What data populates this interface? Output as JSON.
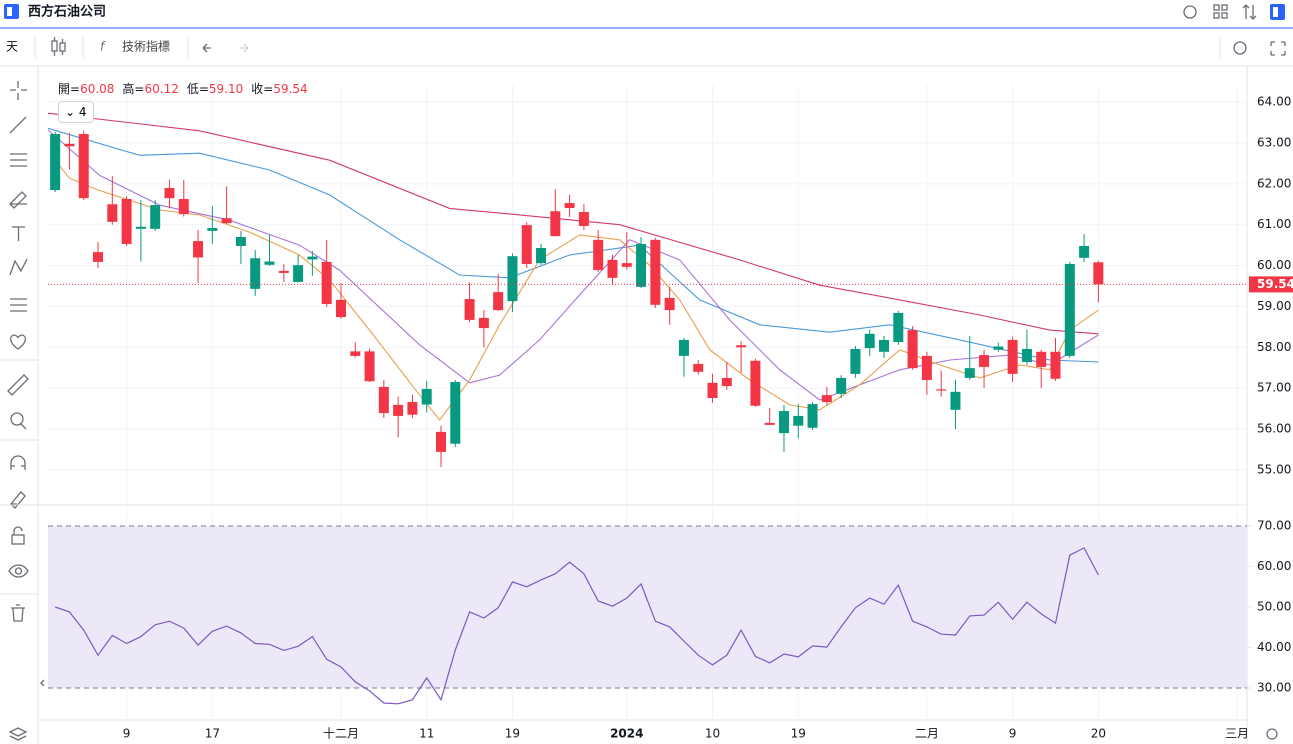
{
  "header": {
    "title": "西方石油公司"
  },
  "toolbar": {
    "interval": "天",
    "indicators": "技術指標"
  },
  "ohlc_legend": [
    {
      "label": "開=",
      "value": "60.08"
    },
    {
      "label": "高=",
      "value": "60.12"
    },
    {
      "label": "低=",
      "value": "59.10"
    },
    {
      "label": "收=",
      "value": "59.54"
    }
  ],
  "indicator_count": "4",
  "chart_data": [
    {
      "type": "candlestick",
      "up_color": "#089981",
      "down_color": "#f23645",
      "xlim": [
        -0.5,
        83.4
      ],
      "ylim": [
        54.14,
        64.42
      ],
      "grid": true,
      "yticks": [
        {
          "value": 55,
          "label": "55.00"
        },
        {
          "value": 56,
          "label": "56.00"
        },
        {
          "value": 57,
          "label": "57.00"
        },
        {
          "value": 58,
          "label": "58.00"
        },
        {
          "value": 59,
          "label": "59.00"
        },
        {
          "value": 60,
          "label": "60.00"
        },
        {
          "value": 61,
          "label": "61.00"
        },
        {
          "value": 62,
          "label": "62.00"
        },
        {
          "value": 63,
          "label": "63.00"
        },
        {
          "value": 64,
          "label": "64.00"
        }
      ],
      "xticks": [
        {
          "value": 5,
          "label": "9"
        },
        {
          "value": 11,
          "label": "17"
        },
        {
          "value": 20,
          "label": "十二月"
        },
        {
          "value": 26,
          "label": "11"
        },
        {
          "value": 32,
          "label": "19"
        },
        {
          "value": 40,
          "label": "2024"
        },
        {
          "value": 46,
          "label": "10"
        },
        {
          "value": 52,
          "label": "19"
        },
        {
          "value": 61,
          "label": "二月"
        },
        {
          "value": 67,
          "label": "9"
        },
        {
          "value": 73,
          "label": "20"
        },
        {
          "value": 82.7,
          "label": "三月"
        }
      ],
      "last_price": {
        "value": 59.54,
        "label": "59.54",
        "color": "#f23645"
      },
      "x": [
        0,
        1,
        2,
        3,
        4,
        5,
        6,
        7,
        8,
        9,
        10,
        11,
        12,
        13,
        14,
        15,
        16,
        17,
        18,
        19,
        20,
        21,
        22,
        23,
        24,
        25,
        26,
        27,
        28,
        29,
        30,
        31,
        32,
        33,
        34,
        35,
        36,
        37,
        38,
        39,
        40,
        41,
        42,
        43,
        44,
        45,
        46,
        47,
        48,
        49,
        50,
        51,
        52,
        53,
        54,
        55,
        56,
        57,
        58,
        59,
        60,
        61,
        62,
        63,
        64,
        65,
        66,
        67,
        68,
        69,
        70,
        71,
        72,
        73
      ],
      "open": [
        61.85,
        62.98,
        63.22,
        60.33,
        61.5,
        61.63,
        60.9,
        60.9,
        61.9,
        61.63,
        60.6,
        60.85,
        61.16,
        60.48,
        59.43,
        60.02,
        59.87,
        59.6,
        60.15,
        60.09,
        59.16,
        57.9,
        57.9,
        57.03,
        56.59,
        56.66,
        56.6,
        55.93,
        55.64,
        59.18,
        58.72,
        59.35,
        59.13,
        60.99,
        60.06,
        61.33,
        61.53,
        61.31,
        60.63,
        60.14,
        60.06,
        59.48,
        60.63,
        59.21,
        57.79,
        57.59,
        57.13,
        57.25,
        58.05,
        57.67,
        56.15,
        55.9,
        56.08,
        56.03,
        56.83,
        56.86,
        57.35,
        57.98,
        57.89,
        58.13,
        58.42,
        57.79,
        56.97,
        56.47,
        57.25,
        57.81,
        57.94,
        58.18,
        57.64,
        57.89,
        57.89,
        57.79,
        60.19,
        60.08
      ],
      "high": [
        63.27,
        63.25,
        63.3,
        60.58,
        62.19,
        61.7,
        61.6,
        61.6,
        62.1,
        62.1,
        60.87,
        61.46,
        61.94,
        60.85,
        60.38,
        60.75,
        60.04,
        60.26,
        60.36,
        60.63,
        59.57,
        58.12,
        57.97,
        57.2,
        56.79,
        56.84,
        57.18,
        56.08,
        57.2,
        59.59,
        58.91,
        59.79,
        60.3,
        61.06,
        60.53,
        61.87,
        61.73,
        61.5,
        60.87,
        60.26,
        60.82,
        60.7,
        60.68,
        59.48,
        58.23,
        57.69,
        57.35,
        57.64,
        58.15,
        57.72,
        56.52,
        56.59,
        56.61,
        56.66,
        57.03,
        57.32,
        58.03,
        58.43,
        58.28,
        58.89,
        58.52,
        57.89,
        57.43,
        57.2,
        58.28,
        57.94,
        58.11,
        58.26,
        58.43,
        57.94,
        58.23,
        60.09,
        60.77,
        60.12
      ],
      "low": [
        61.8,
        62.35,
        61.6,
        59.94,
        61.0,
        60.48,
        60.1,
        60.85,
        61.4,
        61.2,
        59.57,
        60.53,
        61.02,
        60.04,
        59.26,
        59.99,
        59.6,
        59.58,
        59.75,
        58.99,
        58.7,
        57.75,
        57.15,
        56.27,
        55.8,
        56.27,
        56.41,
        55.07,
        55.56,
        58.62,
        58.0,
        58.89,
        58.86,
        59.94,
        60.01,
        60.72,
        61.19,
        60.87,
        59.84,
        59.53,
        59.9,
        59.45,
        58.96,
        58.55,
        57.28,
        57.33,
        56.64,
        56.96,
        57.38,
        56.54,
        56.1,
        55.44,
        55.77,
        55.98,
        56.59,
        56.76,
        57.25,
        57.79,
        57.74,
        58.06,
        57.45,
        56.84,
        56.79,
        56.0,
        57.2,
        57.0,
        57.89,
        57.15,
        57.57,
        57.0,
        57.18,
        57.74,
        60.09,
        59.1
      ],
      "close": [
        63.22,
        62.92,
        61.65,
        60.09,
        61.07,
        60.53,
        60.95,
        61.48,
        61.65,
        61.26,
        60.2,
        60.92,
        61.04,
        60.7,
        60.18,
        60.1,
        59.82,
        60.01,
        60.22,
        59.06,
        58.74,
        57.79,
        57.17,
        56.39,
        56.32,
        56.35,
        56.98,
        55.44,
        57.15,
        58.67,
        58.47,
        58.91,
        60.23,
        60.04,
        60.43,
        60.72,
        61.41,
        60.97,
        59.89,
        59.7,
        59.97,
        60.53,
        59.04,
        58.91,
        58.18,
        57.4,
        56.76,
        57.05,
        58.0,
        56.57,
        56.1,
        56.44,
        56.32,
        56.61,
        56.66,
        57.25,
        57.96,
        58.33,
        58.18,
        58.84,
        57.49,
        57.2,
        56.94,
        56.91,
        57.49,
        57.52,
        58.02,
        57.35,
        57.96,
        57.52,
        57.23,
        60.04,
        60.48,
        59.54
      ],
      "lines": [
        {
          "color": "#d23a6a",
          "x": [
            -0.5,
            10.1,
            19.2,
            27.6,
            32.5,
            39.5,
            47.9,
            53.5,
            59.1,
            64.7,
            69.6,
            73
          ],
          "values": [
            63.73,
            63.3,
            62.58,
            61.4,
            61.24,
            61.0,
            60.14,
            59.52,
            59.16,
            58.79,
            58.42,
            58.33
          ]
        },
        {
          "color": "#4a98dc",
          "x": [
            -0.5,
            5.9,
            10.1,
            15,
            19.2,
            24.1,
            28.3,
            31.8,
            36,
            40.9,
            45.1,
            49.3,
            54.2,
            58.4,
            63.3,
            69.6,
            73
          ],
          "values": [
            63.36,
            62.7,
            62.75,
            62.34,
            61.73,
            60.63,
            59.77,
            59.7,
            60.26,
            60.5,
            59.16,
            58.55,
            58.37,
            58.55,
            58.18,
            57.69,
            57.64
          ]
        },
        {
          "color": "#a874d8",
          "x": [
            -0.5,
            3.1,
            7.3,
            12.2,
            17.1,
            19.9,
            25.5,
            29,
            31.1,
            33.9,
            36.7,
            40.2,
            43.7,
            47.2,
            50.7,
            53.5,
            56.3,
            59.1,
            62.6,
            66.8,
            69.6,
            73
          ],
          "values": [
            63.32,
            62.21,
            61.48,
            61.11,
            60.5,
            59.89,
            58.06,
            57.13,
            57.32,
            58.18,
            59.28,
            60.63,
            60.14,
            58.67,
            57.45,
            56.71,
            57.08,
            57.45,
            57.69,
            57.81,
            57.57,
            58.3
          ]
        },
        {
          "color": "#e8a050",
          "x": [
            0,
            1,
            3,
            7.3,
            10.1,
            13.6,
            17.1,
            19.2,
            22,
            25.5,
            26.9,
            29,
            31.1,
            33.9,
            36.7,
            39.5,
            41.6,
            43.7,
            45.8,
            48.6,
            51.4,
            53.5,
            56.3,
            59.1,
            61.9,
            64.7,
            67.5,
            69.6,
            71,
            73
          ],
          "values": [
            62.58,
            62.14,
            61.85,
            61.36,
            61.24,
            60.82,
            60.26,
            59.65,
            58.42,
            56.83,
            56.22,
            57.2,
            58.55,
            60.14,
            60.75,
            60.63,
            60.01,
            59.16,
            57.94,
            57.2,
            56.59,
            56.47,
            57.08,
            57.94,
            57.57,
            57.25,
            57.57,
            57.45,
            58.42,
            58.91
          ]
        }
      ]
    },
    {
      "type": "line",
      "color": "#7e57c2",
      "band_color": "#ede8f8",
      "band": [
        30,
        70
      ],
      "xlim": [
        -0.5,
        83.4
      ],
      "ylim": [
        22.1,
        75.2
      ],
      "yticks": [
        {
          "value": 30,
          "label": "30.00"
        },
        {
          "value": 40,
          "label": "40.00"
        },
        {
          "value": 50,
          "label": "50.00"
        },
        {
          "value": 60,
          "label": "60.00"
        },
        {
          "value": 70,
          "label": "70.00"
        }
      ],
      "x": [
        0,
        1,
        2,
        3,
        4,
        5,
        6,
        7,
        8,
        9,
        10,
        11,
        12,
        13,
        14,
        15,
        16,
        17,
        18,
        19,
        20,
        21,
        22,
        23,
        24,
        25,
        26,
        27,
        28,
        29,
        30,
        31,
        32,
        33,
        34,
        35,
        36,
        37,
        38,
        39,
        40,
        41,
        42,
        43,
        44,
        45,
        46,
        47,
        48,
        49,
        50,
        51,
        52,
        53,
        54,
        55,
        56,
        57,
        58,
        59,
        60,
        61,
        62,
        63,
        64,
        65,
        66,
        67,
        68,
        69,
        70,
        71,
        72,
        73
      ],
      "values": [
        50,
        48.8,
        44.3,
        38.1,
        43,
        41,
        42.7,
        45.6,
        46.5,
        44.8,
        40.6,
        44,
        45.3,
        43.6,
        41,
        40.8,
        39.3,
        40.3,
        42.7,
        37.1,
        35.2,
        31.5,
        29.3,
        26.3,
        26.1,
        27.1,
        32.5,
        27.1,
        39.4,
        48.8,
        47.3,
        49.8,
        56.2,
        55,
        56.7,
        58.2,
        61.1,
        58.2,
        51.5,
        50.2,
        52.2,
        55.7,
        46.5,
        45.1,
        41.6,
        38.1,
        35.7,
        38.1,
        44.3,
        37.8,
        36.2,
        38.4,
        37.7,
        40.4,
        40.1,
        45.1,
        49.8,
        52.2,
        50.7,
        55.4,
        46.5,
        45.1,
        43.3,
        43.1,
        47.8,
        48,
        51.2,
        47,
        51.2,
        48.3,
        46,
        62.8,
        64.6,
        57.9
      ]
    }
  ]
}
